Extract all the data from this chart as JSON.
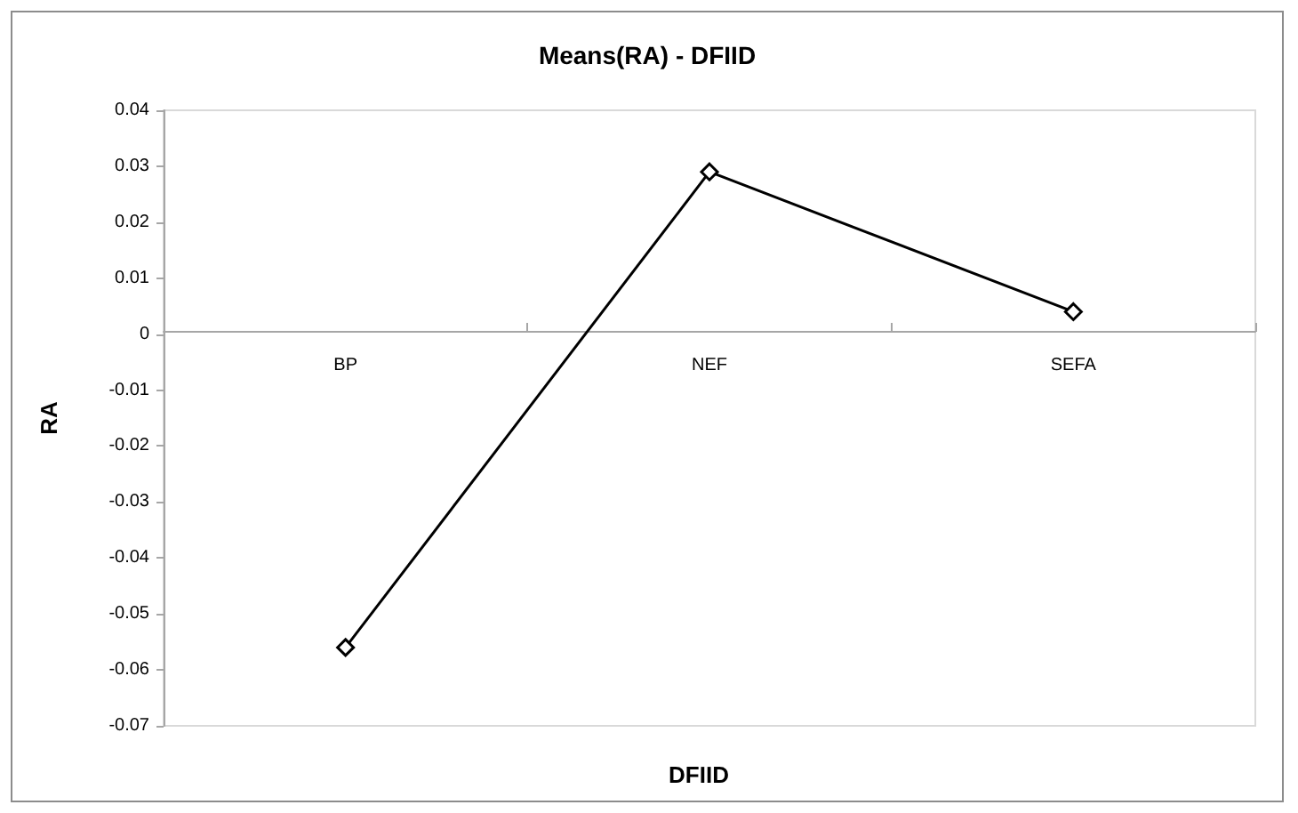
{
  "chart_data": {
    "type": "line",
    "title": "Means(RA) - DFIID",
    "xlabel": "DFIID",
    "ylabel": "RA",
    "categories": [
      "BP",
      "NEF",
      "SEFA"
    ],
    "series": [
      {
        "color": "#000000",
        "values": [
          -0.056,
          0.029,
          0.004
        ]
      }
    ],
    "ylim": [
      -0.07,
      0.04
    ],
    "yticks": [
      -0.07,
      -0.06,
      -0.05,
      -0.04,
      -0.03,
      -0.02,
      -0.01,
      0,
      0.01,
      0.02,
      0.03,
      0.04
    ],
    "grid": false,
    "marker": "diamond",
    "line_style": "solid"
  }
}
